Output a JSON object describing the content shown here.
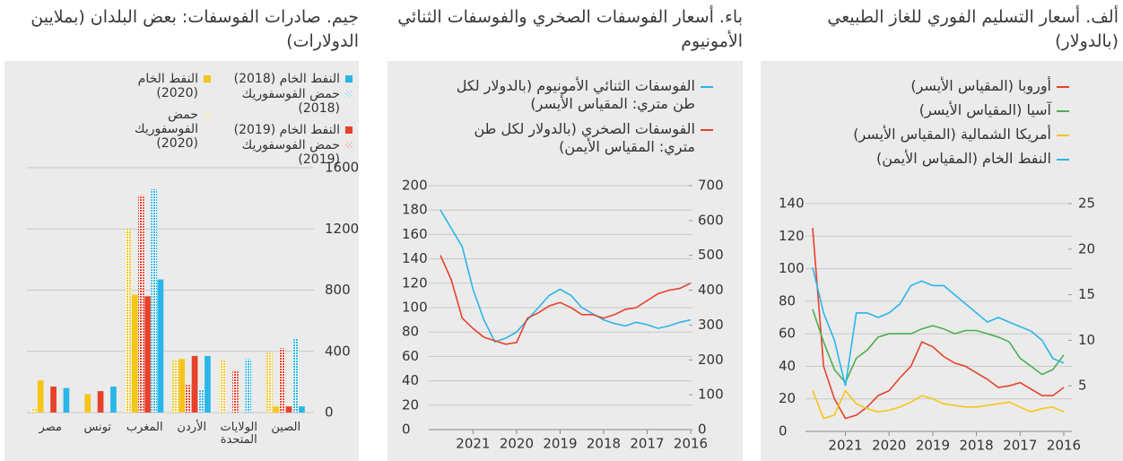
{
  "chart_data": [
    {
      "type": "line",
      "title": "ألف. أسعار التسليم الفوري للغاز الطبيعي (بالدولار)",
      "x": [
        2016,
        2016.25,
        2016.5,
        2016.75,
        2017,
        2017.25,
        2017.5,
        2017.75,
        2018,
        2018.25,
        2018.5,
        2018.75,
        2019,
        2019.25,
        2019.5,
        2019.75,
        2020,
        2020.25,
        2020.5,
        2020.75,
        2021,
        2021.25,
        2021.5,
        2021.75
      ],
      "xlim": [
        2016,
        2021.75
      ],
      "xticks": [
        2016,
        2017,
        2018,
        2019,
        2020,
        2021
      ],
      "xreverse": true,
      "ylim": [
        0,
        140
      ],
      "yticks": [
        0,
        20,
        40,
        60,
        80,
        100,
        120,
        140
      ],
      "y2lim": [
        0,
        25
      ],
      "y2ticks": [
        5,
        10,
        15,
        20,
        25
      ],
      "grid": true,
      "series": [
        {
          "name": "أوروبا (المقياس الأيسر)",
          "color": "#e8412c",
          "values": [
            27,
            22,
            22,
            26,
            30,
            28,
            27,
            32,
            36,
            40,
            42,
            46,
            52,
            55,
            40,
            33,
            25,
            22,
            15,
            10,
            8,
            20,
            40,
            125
          ]
        },
        {
          "name": "آسيا (المقياس الأيسر)",
          "color": "#4caf50",
          "values": [
            47,
            38,
            35,
            40,
            45,
            55,
            58,
            60,
            62,
            62,
            60,
            63,
            65,
            63,
            60,
            60,
            60,
            58,
            50,
            45,
            30,
            38,
            55,
            75
          ]
        },
        {
          "name": "أمريكا الشمالية (المقياس الأيسر)",
          "color": "#f5c518",
          "values": [
            12,
            15,
            14,
            12,
            15,
            18,
            17,
            16,
            15,
            15,
            16,
            17,
            20,
            22,
            18,
            15,
            13,
            12,
            14,
            17,
            25,
            10,
            8,
            25
          ]
        },
        {
          "name": "النفط الخام (المقياس الأيمن)",
          "color": "#29b6e8",
          "axis": "y2",
          "values": [
            7.5,
            8,
            10,
            11,
            11.5,
            12,
            12.5,
            12,
            13,
            14,
            15,
            16,
            16,
            16.5,
            16,
            14,
            13,
            12.5,
            13,
            13,
            5,
            10,
            13,
            18
          ]
        }
      ]
    },
    {
      "type": "line",
      "title": "باء. أسعار الفوسفات الصخري والفوسفات الثنائي الأمونيوم",
      "x": [
        2016,
        2016.25,
        2016.5,
        2016.75,
        2017,
        2017.25,
        2017.5,
        2017.75,
        2018,
        2018.25,
        2018.5,
        2018.75,
        2019,
        2019.25,
        2019.5,
        2019.75,
        2020,
        2020.25,
        2020.5,
        2020.75,
        2021,
        2021.25,
        2021.5,
        2021.75
      ],
      "xlim": [
        2016,
        2021.75
      ],
      "xticks": [
        2016,
        2017,
        2018,
        2019,
        2020,
        2021
      ],
      "xreverse": true,
      "ylim": [
        0,
        200
      ],
      "yticks": [
        0,
        20,
        40,
        60,
        80,
        100,
        120,
        140,
        160,
        180,
        200
      ],
      "y2lim": [
        0,
        700
      ],
      "y2ticks": [
        0,
        100,
        200,
        300,
        400,
        500,
        600,
        700
      ],
      "grid": true,
      "series": [
        {
          "name": "الفوسفات الثنائي الأمونيوم (بالدولار لكل طن متري: المقياس الأيسر)",
          "color": "#29b6e8",
          "values": [
            90,
            88,
            85,
            83,
            86,
            88,
            85,
            87,
            90,
            95,
            100,
            110,
            115,
            110,
            100,
            90,
            80,
            75,
            72,
            90,
            115,
            150,
            165,
            180
          ]
        },
        {
          "name": "الفوسفات الصخري (بالدولار لكل طن متري: المقياس الأيمن)",
          "color": "#e8412c",
          "axis": "y2",
          "values": [
            420,
            405,
            400,
            390,
            370,
            350,
            345,
            330,
            320,
            330,
            330,
            350,
            365,
            355,
            335,
            320,
            250,
            245,
            255,
            265,
            290,
            320,
            430,
            500
          ]
        }
      ]
    },
    {
      "type": "bar",
      "title": "جيم. صادرات الفوسفات: بعض البلدان (بملايين الدولارات)",
      "categories": [
        "الصين",
        "الولايات المتحدة",
        "الأردن",
        "المغرب",
        "تونس",
        "مصر"
      ],
      "xreverse": true,
      "ylim": [
        0,
        1600
      ],
      "yticks": [
        0,
        400,
        800,
        1200,
        1600
      ],
      "grid": true,
      "series": [
        {
          "name": "النفط الخام (2018)",
          "color": "#29b6e8",
          "values": [
            40,
            0,
            370,
            870,
            170,
            160
          ]
        },
        {
          "name": "حمض الفوسفوريك (2018)",
          "color": "#29b6e8",
          "hatch": true,
          "values": [
            480,
            350,
            150,
            1460,
            0,
            0
          ]
        },
        {
          "name": "النفط الخام (2019)",
          "color": "#e8412c",
          "values": [
            40,
            0,
            370,
            760,
            140,
            170
          ]
        },
        {
          "name": "حمض الفوسفوريك (2019)",
          "color": "#e8412c",
          "hatch": true,
          "values": [
            420,
            270,
            180,
            1420,
            0,
            0
          ]
        },
        {
          "name": "النفط الخام (2020)",
          "color": "#f5c518",
          "values": [
            40,
            0,
            350,
            770,
            120,
            210
          ]
        },
        {
          "name": "حمض الفوسفوريك (2020)",
          "color": "#f5c518",
          "hatch": true,
          "values": [
            390,
            340,
            340,
            1200,
            0,
            30
          ]
        }
      ]
    }
  ]
}
